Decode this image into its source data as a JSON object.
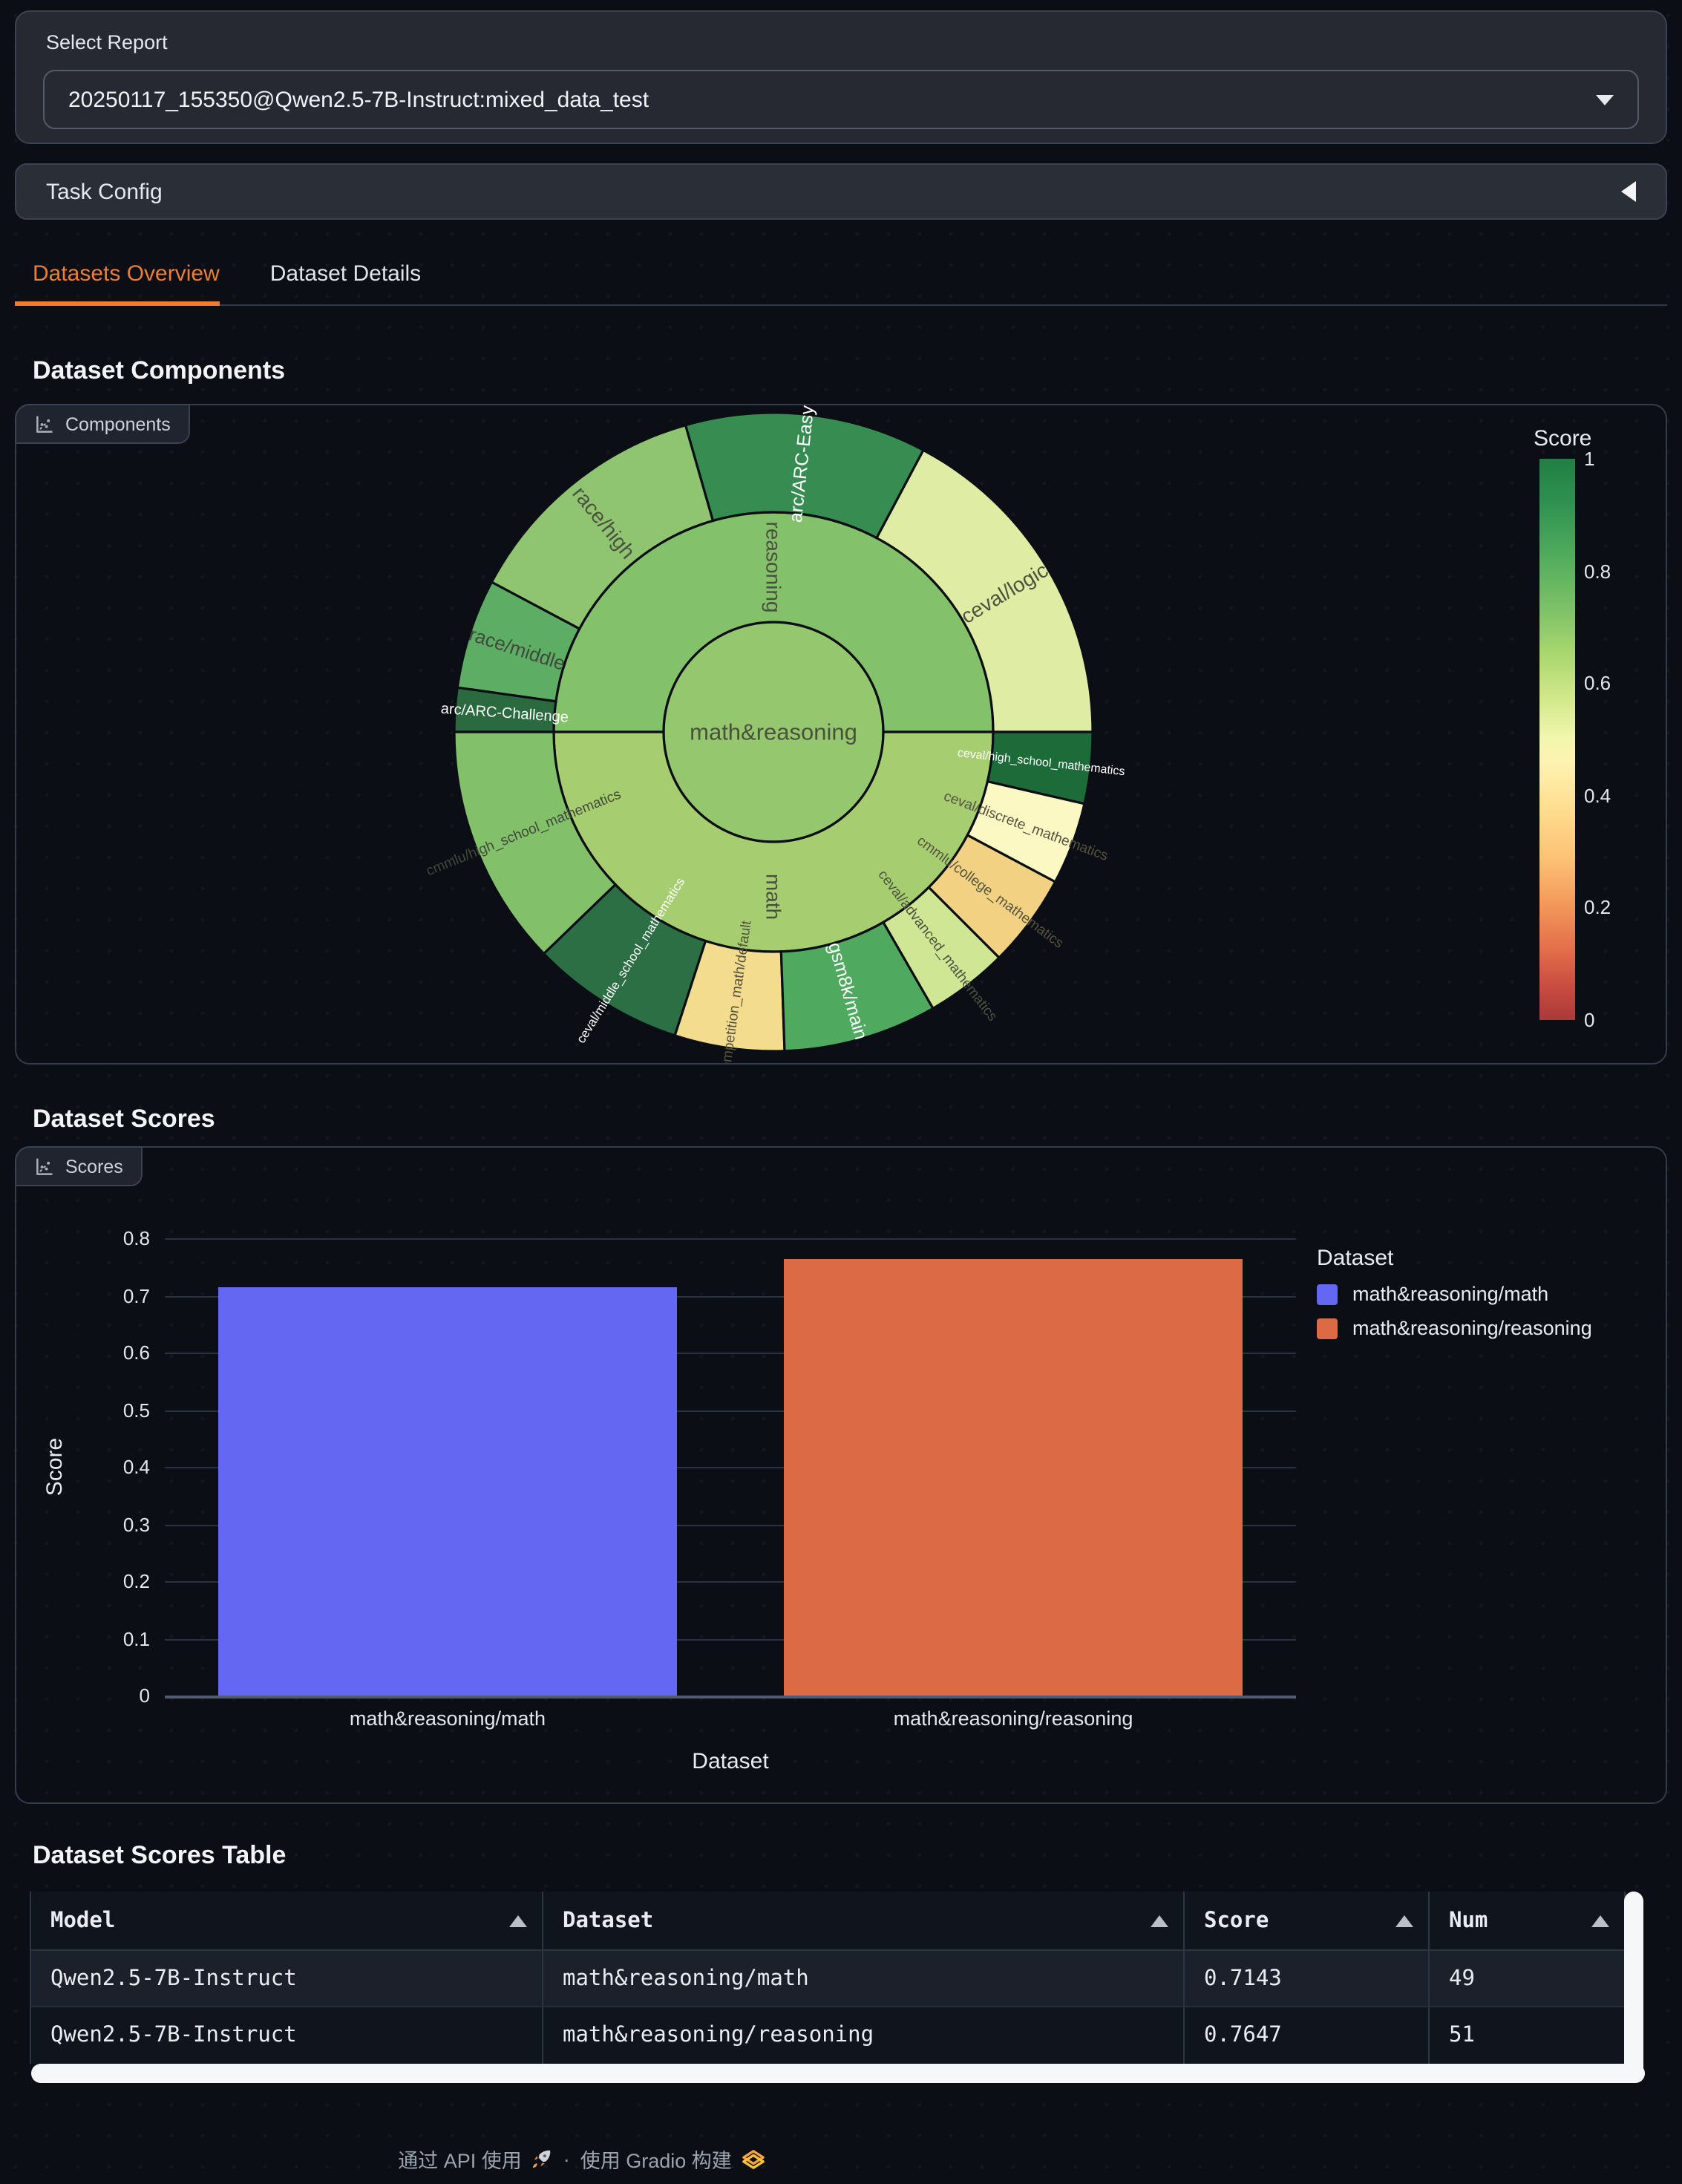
{
  "report_selector": {
    "label": "Select Report",
    "value": "20250117_155350@Qwen2.5-7B-Instruct:mixed_data_test"
  },
  "task_config": {
    "label": "Task Config"
  },
  "tabs": [
    {
      "label": "Datasets Overview",
      "active": true
    },
    {
      "label": "Dataset Details",
      "active": false
    }
  ],
  "headings": {
    "components": "Dataset Components",
    "scores": "Dataset Scores",
    "scores_table": "Dataset Scores Table"
  },
  "panels": {
    "components_chip": "Components",
    "scores_chip": "Scores"
  },
  "chart_data": [
    {
      "type": "sunburst",
      "title": "Dataset Components",
      "colorbar": {
        "title": "Score",
        "min": 0,
        "max": 1,
        "ticks": [
          "1",
          "0.8",
          "0.6",
          "0.4",
          "0.2",
          "0"
        ],
        "colorscale_name": "RdYlGn"
      },
      "center": {
        "label": "math&reasoning",
        "color": "#94c76e",
        "text_color": "#49503d",
        "size": 15.5
      },
      "branches": [
        {
          "label": "reasoning",
          "parent": "math&reasoning",
          "a0": 0,
          "a1": 180,
          "color": "#84c16b",
          "text_color": "#49503d",
          "size": 14,
          "score": 0.7647
        },
        {
          "label": "math",
          "parent": "math&reasoning",
          "a0": 180,
          "a1": 360,
          "color": "#a6ce70",
          "text_color": "#49503d",
          "size": 14,
          "score": 0.7143
        }
      ],
      "leaves": [
        {
          "label": "ceval/logic",
          "parent": "reasoning",
          "a0": 0,
          "a1": 62,
          "color": "#dfeca3",
          "text_color": "#4c5140",
          "size": 14,
          "score": 0.58
        },
        {
          "label": "arc/ARC-Easy",
          "parent": "reasoning",
          "a0": 62,
          "a1": 106,
          "color": "#368c51",
          "text_color": "#ffffff",
          "size": 12.5,
          "score": 0.88
        },
        {
          "label": "race/high",
          "parent": "reasoning",
          "a0": 106,
          "a1": 152,
          "color": "#8fc471",
          "text_color": "#4c5140",
          "size": 14,
          "score": 0.72
        },
        {
          "label": "race/middle",
          "parent": "reasoning",
          "a0": 152,
          "a1": 172,
          "color": "#5ead64",
          "text_color": "#3f4a3b",
          "size": 13,
          "score": 0.8
        },
        {
          "label": "arc/ARC-Challenge",
          "parent": "reasoning",
          "a0": 172,
          "a1": 180,
          "color": "#2a6a3e",
          "text_color": "#ffffff",
          "size": 10,
          "score": 0.93
        },
        {
          "label": "cmmlu/high_school_mathematics",
          "parent": "math",
          "a0": 180,
          "a1": 224,
          "color": "#83c06a",
          "text_color": "#41493a",
          "size": 9.5,
          "score": 0.74
        },
        {
          "label": "ceval/middle_school_mathematics",
          "parent": "math",
          "a0": 224,
          "a1": 252,
          "color": "#2d6f44",
          "text_color": "#ffffff",
          "size": 8.5,
          "score": 0.92
        },
        {
          "label": "competition_math/default",
          "parent": "math",
          "a0": 252,
          "a1": 272,
          "color": "#f4dc8e",
          "text_color": "#55533f",
          "size": 9.5,
          "score": 0.46
        },
        {
          "label": "gsm8k/main",
          "parent": "math",
          "a0": 272,
          "a1": 300,
          "color": "#4fa95e",
          "text_color": "#ffffff",
          "size": 12.5,
          "score": 0.84
        },
        {
          "label": "ceval/advanced_mathematics",
          "parent": "math",
          "a0": 300,
          "a1": 315,
          "color": "#cfe794",
          "text_color": "#4c5140",
          "size": 9.5,
          "score": 0.62
        },
        {
          "label": "cmmlu/college_mathematics",
          "parent": "math",
          "a0": 315,
          "a1": 332,
          "color": "#f2d183",
          "text_color": "#55533f",
          "size": 9.5,
          "score": 0.42
        },
        {
          "label": "ceval/discrete_mathematics",
          "parent": "math",
          "a0": 332,
          "a1": 347,
          "color": "#fcf8c3",
          "text_color": "#55533f",
          "size": 9.5,
          "score": 0.5
        },
        {
          "label": "ceval/high_school_mathematics",
          "parent": "math",
          "a0": 347,
          "a1": 360,
          "color": "#1e6b3a",
          "text_color": "#ffffff",
          "size": 8,
          "score": 0.97
        }
      ]
    },
    {
      "type": "bar",
      "title": "Dataset Scores",
      "categories": [
        "math&reasoning/math",
        "math&reasoning/reasoning"
      ],
      "values": [
        0.7143,
        0.7647
      ],
      "colors": [
        "#6467f2",
        "#dc6a44"
      ],
      "xlabel": "Dataset",
      "ylabel": "Score",
      "ylim": [
        0,
        0.8
      ],
      "yticks": [
        0,
        0.1,
        0.2,
        0.3,
        0.4,
        0.5,
        0.6,
        0.7,
        0.8
      ],
      "grid": true,
      "legend": {
        "title": "Dataset",
        "position": "right",
        "items": [
          {
            "label": "math&reasoning/math",
            "color": "#6467f2"
          },
          {
            "label": "math&reasoning/reasoning",
            "color": "#dc6a44"
          }
        ]
      }
    }
  ],
  "table": {
    "headers": [
      "Model",
      "Dataset",
      "Score",
      "Num"
    ],
    "rows": [
      [
        "Qwen2.5-7B-Instruct",
        "math&reasoning/math",
        "0.7143",
        "49"
      ],
      [
        "Qwen2.5-7B-Instruct",
        "math&reasoning/reasoning",
        "0.7647",
        "51"
      ]
    ]
  },
  "footer": {
    "api_text": "通过 API 使用",
    "separator": "·",
    "built_text": "使用 Gradio 构建"
  }
}
